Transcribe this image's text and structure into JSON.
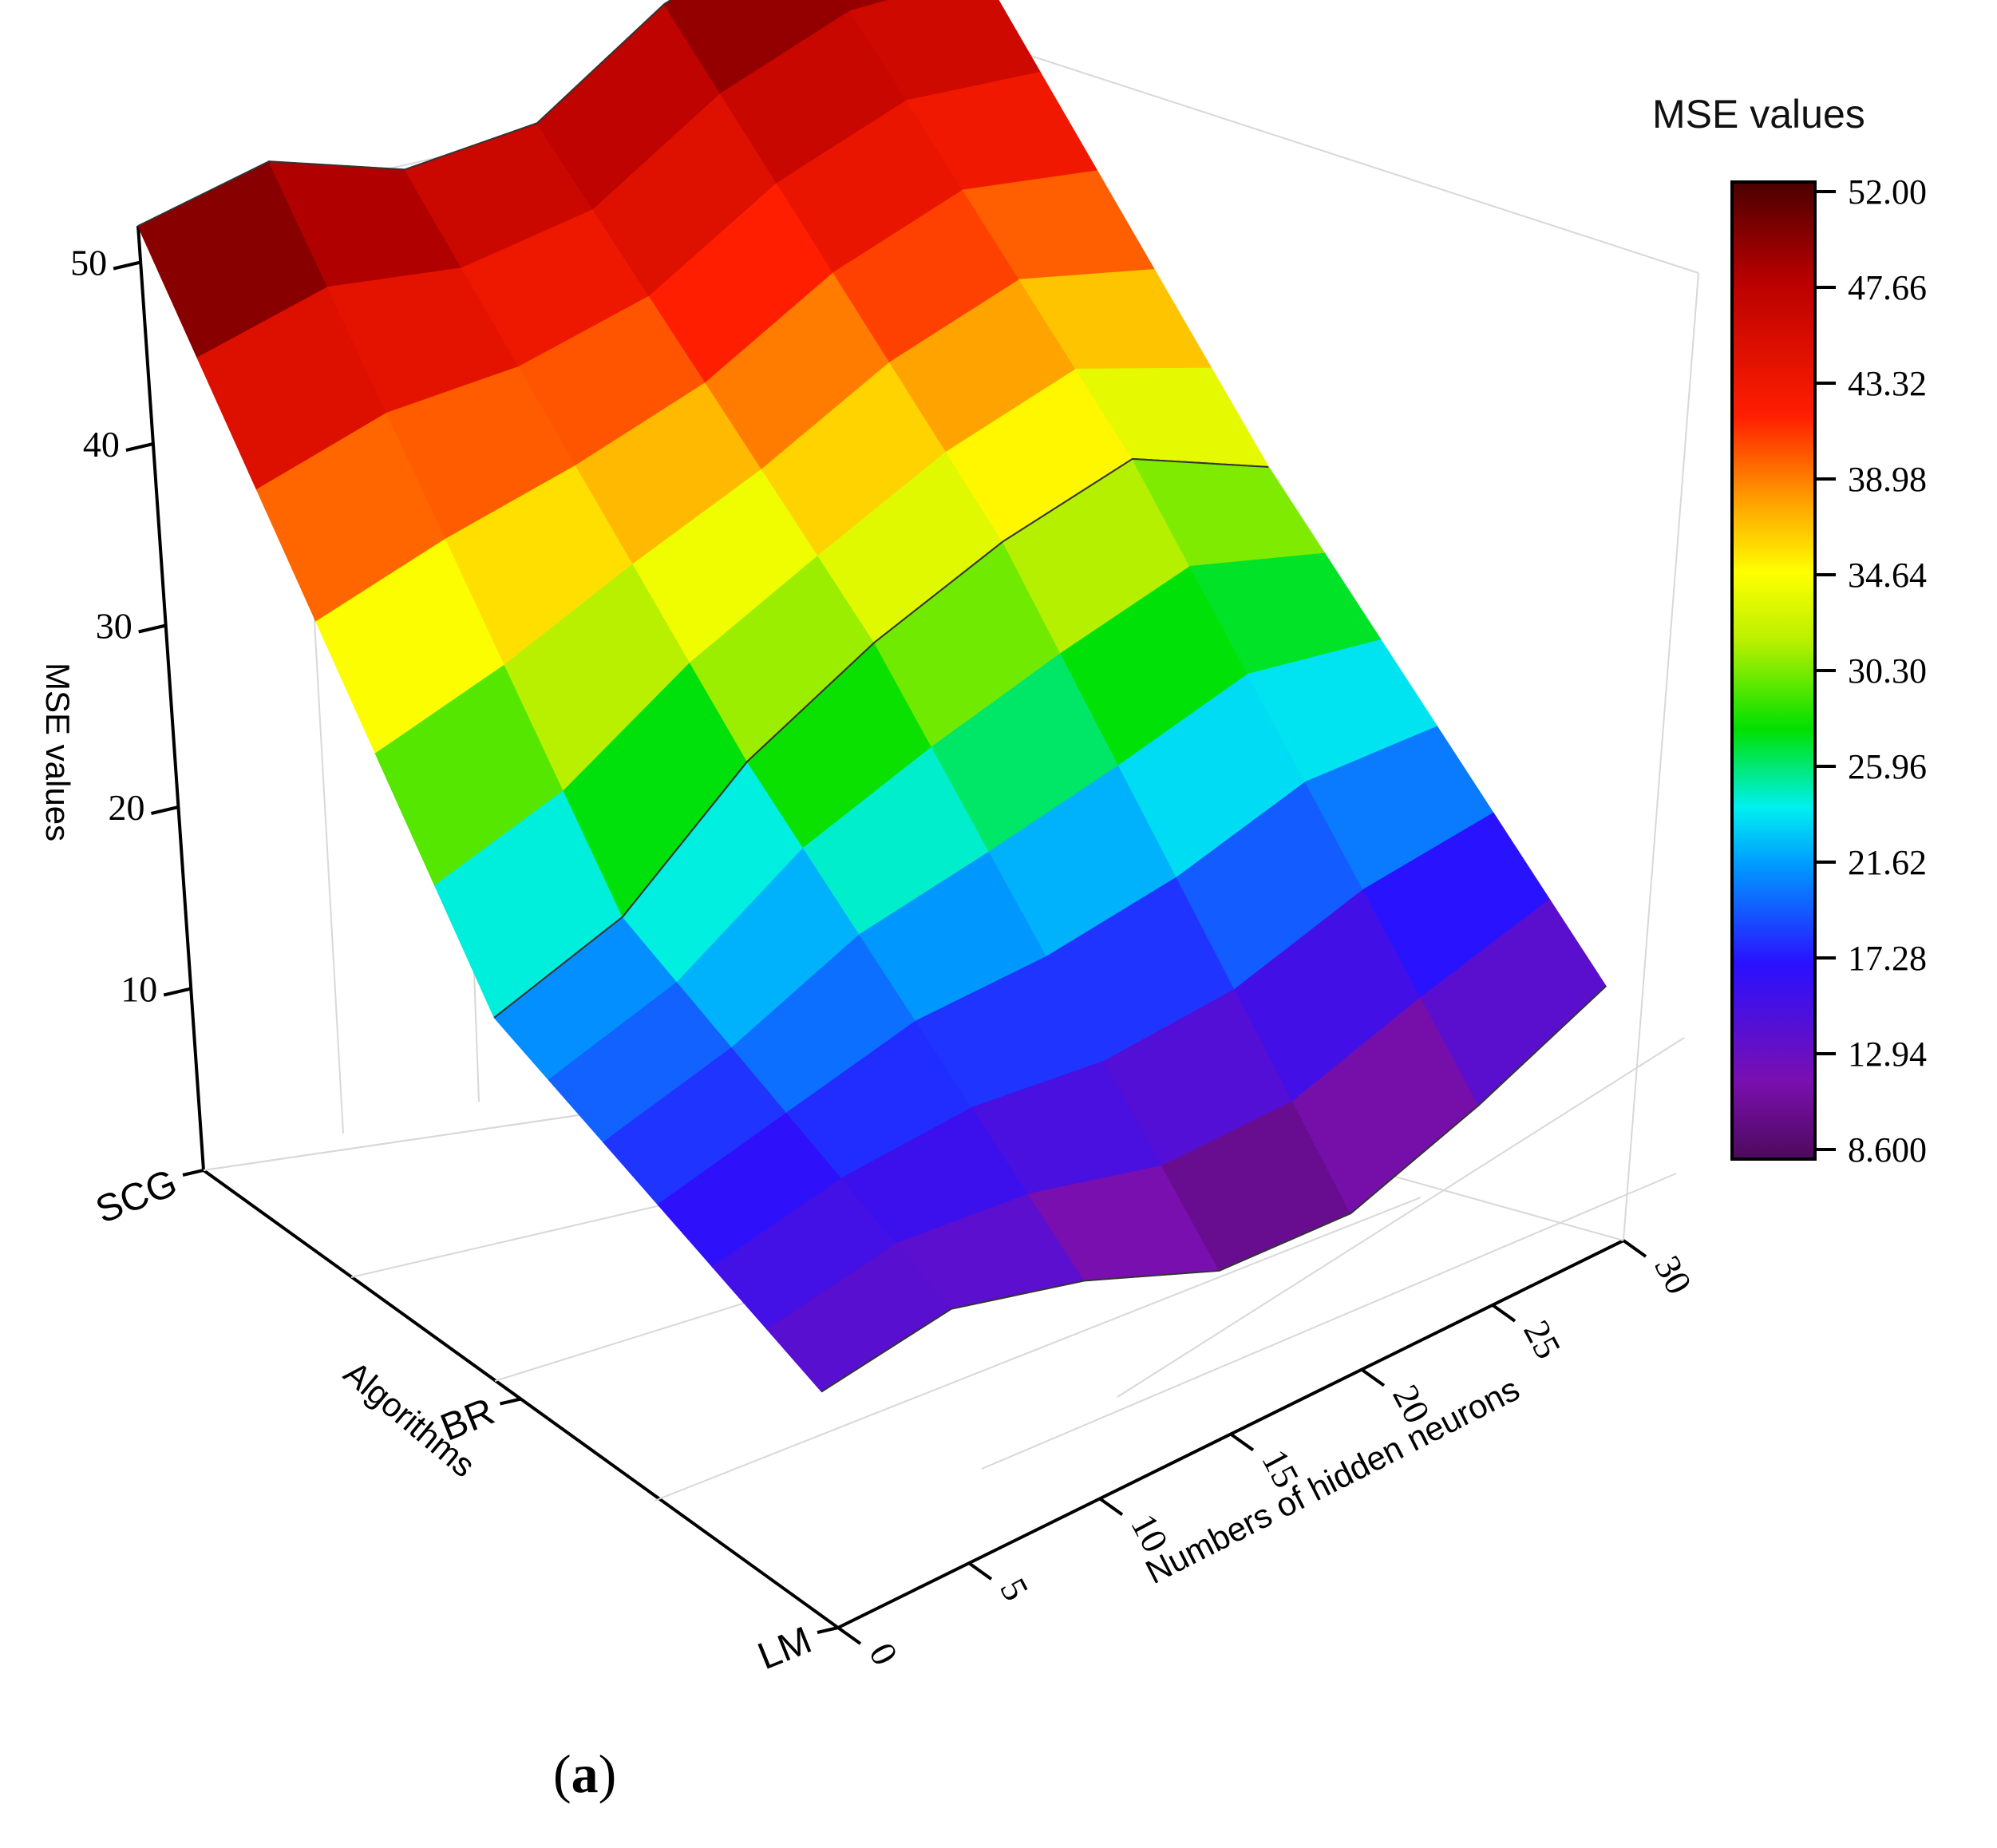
{
  "chart_data": {
    "type": "surface",
    "z_label": "MSE values",
    "x_label": "Numbers of hidden neurons",
    "y_label": "Algorithms",
    "x_ticks": [
      "0",
      "5",
      "10",
      "15",
      "20",
      "25",
      "30"
    ],
    "y_categories": [
      "SCG",
      "BR",
      "LM"
    ],
    "z_ticks": [
      "10",
      "20",
      "30",
      "40",
      "50"
    ],
    "zlim": [
      0,
      52
    ],
    "x": [
      0,
      5,
      10,
      15,
      20,
      25,
      30
    ],
    "series": [
      {
        "name": "SCG",
        "values": [
          52,
          52,
          48,
          47,
          50,
          51,
          50
        ]
      },
      {
        "name": "BR",
        "values": [
          21,
          23,
          28,
          31,
          33,
          34,
          30
        ]
      },
      {
        "name": "LM",
        "values": [
          13,
          14,
          12,
          9,
          8.6,
          11,
          14
        ]
      }
    ],
    "colorbar": {
      "title": "MSE values",
      "ticks": [
        "52.00",
        "47.66",
        "43.32",
        "38.98",
        "34.64",
        "30.30",
        "25.96",
        "21.62",
        "17.28",
        "12.94",
        "8.600"
      ],
      "min": 8.6,
      "max": 52.0
    }
  },
  "panel_label": {
    "open": "(",
    "letter": "a",
    "close": ")"
  }
}
